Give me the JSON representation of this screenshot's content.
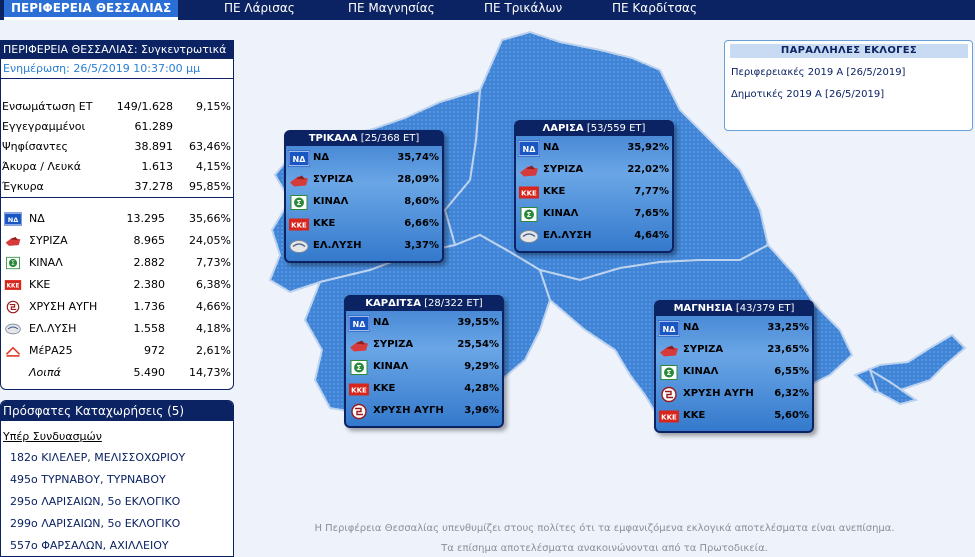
{
  "nav": {
    "tabs": [
      "ΠΕΡΙΦΕΡΕΙΑ ΘΕΣΣΑΛΙΑΣ",
      "ΠΕ Λάρισας",
      "ΠΕ Μαγνησίας",
      "ΠΕ Τρικάλων",
      "ΠΕ Καρδίτσας"
    ]
  },
  "summary": {
    "title": "ΠΕΡΙΦΕΡΕΙΑ ΘΕΣΣΑΛΙΑΣ: Συγκεντρωτικά",
    "update": "Ενημέρωση: 26/5/2019 10:37:00 μμ",
    "stats": [
      {
        "label": "Ενσωμάτωση ΕΤ",
        "value": "149/1.628",
        "pct": "9,15%"
      },
      {
        "label": "Εγγεγραμμένοι",
        "value": "61.289",
        "pct": ""
      },
      {
        "label": "Ψηφίσαντες",
        "value": "38.891",
        "pct": "63,46%"
      },
      {
        "label": "Άκυρα / Λευκά",
        "value": "1.613",
        "pct": "4,15%"
      },
      {
        "label": "Έγκυρα",
        "value": "37.278",
        "pct": "95,85%"
      }
    ],
    "parties": [
      {
        "name": "ΝΔ",
        "votes": "13.295",
        "pct": "35,66%",
        "logo": "nd"
      },
      {
        "name": "ΣΥΡΙΖΑ",
        "votes": "8.965",
        "pct": "24,05%",
        "logo": "syriza"
      },
      {
        "name": "ΚΙΝΑΛ",
        "votes": "2.882",
        "pct": "7,73%",
        "logo": "kinal"
      },
      {
        "name": "ΚΚΕ",
        "votes": "2.380",
        "pct": "6,38%",
        "logo": "kke"
      },
      {
        "name": "ΧΡΥΣΗ ΑΥΓΗ",
        "votes": "1.736",
        "pct": "4,66%",
        "logo": "xa"
      },
      {
        "name": "ΕΛ.ΛΥΣΗ",
        "votes": "1.558",
        "pct": "4,18%",
        "logo": "elysi"
      },
      {
        "name": "ΜέΡΑ25",
        "votes": "972",
        "pct": "2,61%",
        "logo": "mera25"
      },
      {
        "name": "Λοιπά",
        "votes": "5.490",
        "pct": "14,73%",
        "logo": ""
      }
    ]
  },
  "recent": {
    "title": "Πρόσφατες Καταχωρήσεις (5)",
    "subtitle": "Υπέρ Συνδυασμών",
    "items": [
      "182ο ΚΙΛΕΛΕΡ, ΜΕΛΙΣΣΟΧΩΡΙΟΥ",
      "495ο ΤΥΡΝΑΒΟΥ, ΤΥΡΝΑΒΟΥ",
      "295ο ΛΑΡΙΣΑΙΩΝ, 5ο ΕΚΛΟΓΙΚΟ",
      "299ο ΛΑΡΙΣΑΙΩΝ, 5ο ΕΚΛΟΓΙΚΟ",
      "557ο ΦΑΡΣΑΛΩΝ, ΑΧΙΛΛΕΙΟΥ"
    ]
  },
  "parallel": {
    "title": "ΠΑΡΑΛΛΗΛΕΣ ΕΚΛΟΓΕΣ",
    "links": [
      "Περιφερειακές 2019 Α [26/5/2019]",
      "Δημοτικές 2019 Α [26/5/2019]"
    ]
  },
  "cards": {
    "trikala": {
      "name": "ΤΡΙΚΑΛΑ",
      "count": "[25/368 ΕΤ]",
      "rows": [
        {
          "name": "ΝΔ",
          "pct": "35,74%",
          "logo": "nd"
        },
        {
          "name": "ΣΥΡΙΖΑ",
          "pct": "28,09%",
          "logo": "syriza"
        },
        {
          "name": "ΚΙΝΑΛ",
          "pct": "8,60%",
          "logo": "kinal"
        },
        {
          "name": "ΚΚΕ",
          "pct": "6,66%",
          "logo": "kke"
        },
        {
          "name": "ΕΛ.ΛΥΣΗ",
          "pct": "3,37%",
          "logo": "elysi"
        }
      ]
    },
    "larisa": {
      "name": "ΛΑΡΙΣΑ",
      "count": "[53/559 ΕΤ]",
      "rows": [
        {
          "name": "ΝΔ",
          "pct": "35,92%",
          "logo": "nd"
        },
        {
          "name": "ΣΥΡΙΖΑ",
          "pct": "22,02%",
          "logo": "syriza"
        },
        {
          "name": "ΚΚΕ",
          "pct": "7,77%",
          "logo": "kke"
        },
        {
          "name": "ΚΙΝΑΛ",
          "pct": "7,65%",
          "logo": "kinal"
        },
        {
          "name": "ΕΛ.ΛΥΣΗ",
          "pct": "4,64%",
          "logo": "elysi"
        }
      ]
    },
    "karditsa": {
      "name": "ΚΑΡΔΙΤΣΑ",
      "count": "[28/322 ΕΤ]",
      "rows": [
        {
          "name": "ΝΔ",
          "pct": "39,55%",
          "logo": "nd"
        },
        {
          "name": "ΣΥΡΙΖΑ",
          "pct": "25,54%",
          "logo": "syriza"
        },
        {
          "name": "ΚΙΝΑΛ",
          "pct": "9,29%",
          "logo": "kinal"
        },
        {
          "name": "ΚΚΕ",
          "pct": "4,28%",
          "logo": "kke"
        },
        {
          "name": "ΧΡΥΣΗ ΑΥΓΗ",
          "pct": "3,96%",
          "logo": "xa"
        }
      ]
    },
    "magnisia": {
      "name": "ΜΑΓΝΗΣΙΑ",
      "count": "[43/379 ΕΤ]",
      "rows": [
        {
          "name": "ΝΔ",
          "pct": "33,25%",
          "logo": "nd"
        },
        {
          "name": "ΣΥΡΙΖΑ",
          "pct": "23,65%",
          "logo": "syriza"
        },
        {
          "name": "ΚΙΝΑΛ",
          "pct": "6,55%",
          "logo": "kinal"
        },
        {
          "name": "ΧΡΥΣΗ ΑΥΓΗ",
          "pct": "6,32%",
          "logo": "xa"
        },
        {
          "name": "ΚΚΕ",
          "pct": "5,60%",
          "logo": "kke"
        }
      ]
    }
  },
  "logo_text": {
    "nd": "ΝΔ",
    "kke": "ΚΚΕ",
    "kinal": "Σ"
  },
  "footer": {
    "line1": "Η Περιφέρεια Θεσσαλίας υπενθυμίζει στους πολίτες ότι τα εμφανιζόμενα εκλογικά αποτελέσματα είναι ανεπίσημα.",
    "line2": "Τα επίσημα αποτελέσματα ανακοινώνονται από τα Πρωτοδικεία."
  },
  "colors": {
    "navy": "#0c2363",
    "active_tab": "#2b6fd6",
    "link": "#0c2363",
    "update": "#2a7fd4"
  }
}
